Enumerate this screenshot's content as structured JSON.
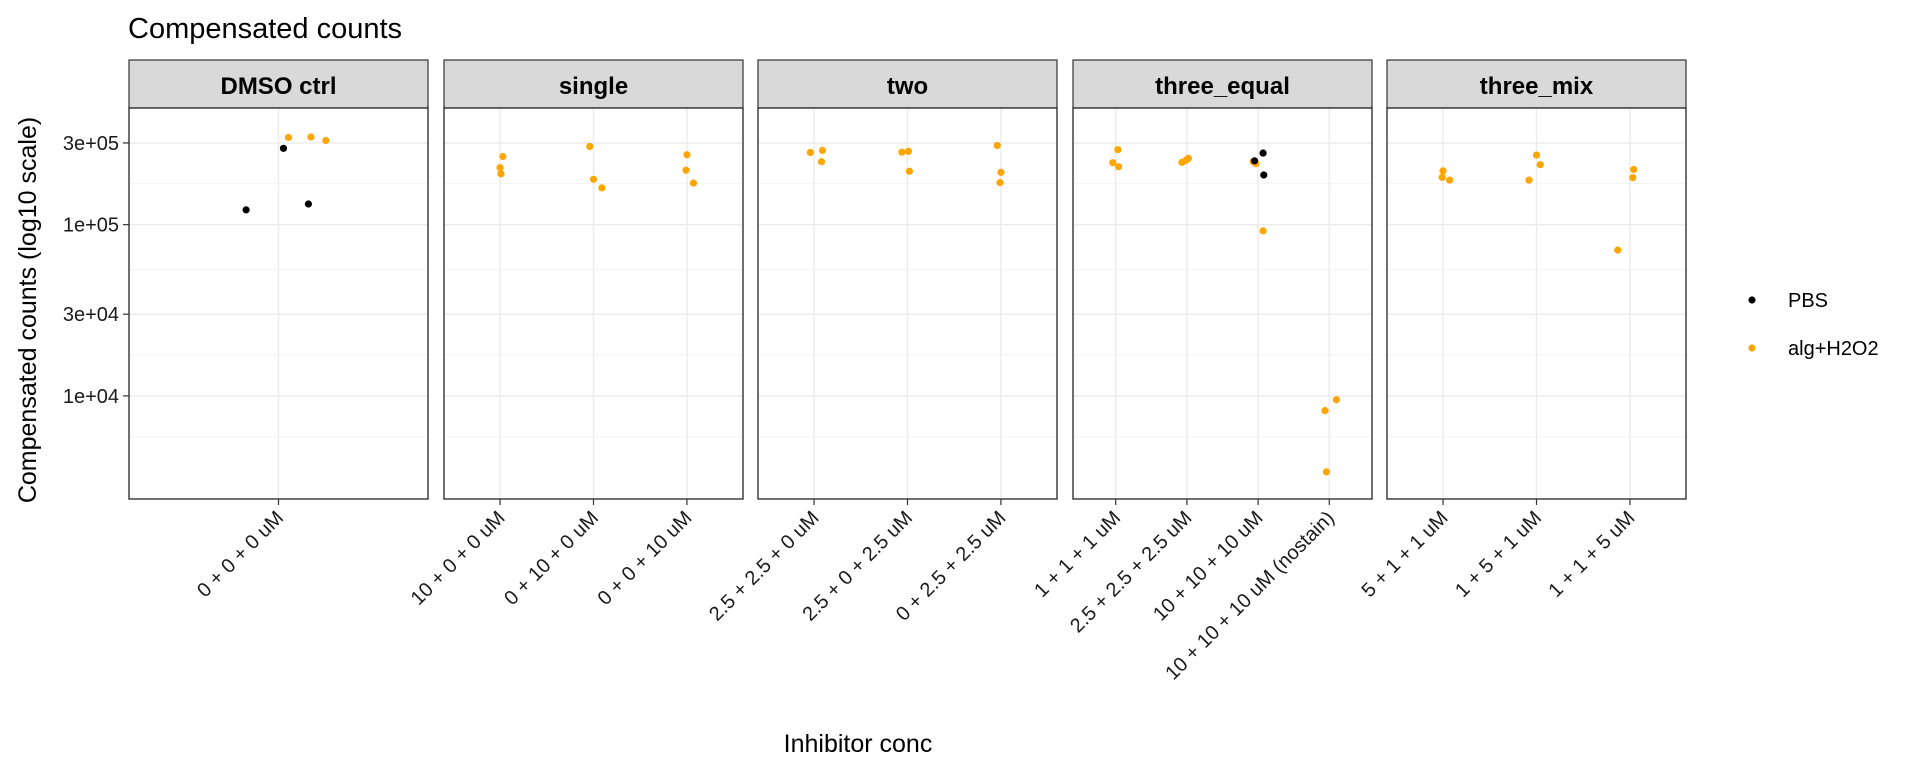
{
  "chart_data": {
    "type": "scatter",
    "title": "Compensated counts",
    "xlabel": "Inhibitor conc",
    "ylabel": "Compensated counts (log10 scale)",
    "y_scale": "log10",
    "y_ticks": [
      10000,
      30000,
      100000,
      300000
    ],
    "y_tick_labels": [
      "1e+04",
      "3e+04",
      "1e+05",
      "3e+05"
    ],
    "ylim": [
      2500,
      480000
    ],
    "grid": true,
    "legend_position": "right",
    "colors": {
      "PBS": "#000000",
      "alg+H2O2": "#FFA500"
    },
    "legend": [
      {
        "key": "PBS",
        "label": "PBS",
        "color": "#000000"
      },
      {
        "key": "alg+H2O2",
        "label": "alg+H2O2",
        "color": "#FFA500"
      }
    ],
    "facets": [
      {
        "label": "DMSO ctrl",
        "categories": [
          "0 + 0 + 0 uM"
        ],
        "points": [
          {
            "category": "0 + 0 + 0 uM",
            "series": "PBS",
            "value": 122000,
            "jitter": -0.13
          },
          {
            "category": "0 + 0 + 0 uM",
            "series": "PBS",
            "value": 279000,
            "jitter": 0.02
          },
          {
            "category": "0 + 0 + 0 uM",
            "series": "PBS",
            "value": 132000,
            "jitter": 0.12
          },
          {
            "category": "0 + 0 + 0 uM",
            "series": "alg+H2O2",
            "value": 323000,
            "jitter": 0.04
          },
          {
            "category": "0 + 0 + 0 uM",
            "series": "alg+H2O2",
            "value": 325000,
            "jitter": 0.13
          },
          {
            "category": "0 + 0 + 0 uM",
            "series": "alg+H2O2",
            "value": 310000,
            "jitter": 0.19
          }
        ]
      },
      {
        "label": "single",
        "categories": [
          "10 + 0 + 0 uM",
          "0 + 10 + 0 uM",
          "0 + 0 + 10 uM"
        ],
        "points": [
          {
            "category": "10 + 0 + 0 uM",
            "series": "alg+H2O2",
            "value": 250000,
            "jitter": 0.03
          },
          {
            "category": "10 + 0 + 0 uM",
            "series": "alg+H2O2",
            "value": 215000,
            "jitter": 0.0
          },
          {
            "category": "10 + 0 + 0 uM",
            "series": "alg+H2O2",
            "value": 198000,
            "jitter": 0.01
          },
          {
            "category": "0 + 10 + 0 uM",
            "series": "alg+H2O2",
            "value": 286000,
            "jitter": -0.04
          },
          {
            "category": "0 + 10 + 0 uM",
            "series": "alg+H2O2",
            "value": 184000,
            "jitter": 0.0
          },
          {
            "category": "0 + 10 + 0 uM",
            "series": "alg+H2O2",
            "value": 164000,
            "jitter": 0.09
          },
          {
            "category": "0 + 0 + 10 uM",
            "series": "alg+H2O2",
            "value": 256000,
            "jitter": 0.0
          },
          {
            "category": "0 + 0 + 10 uM",
            "series": "alg+H2O2",
            "value": 208000,
            "jitter": -0.01
          },
          {
            "category": "0 + 0 + 10 uM",
            "series": "alg+H2O2",
            "value": 175000,
            "jitter": 0.07
          }
        ]
      },
      {
        "label": "two",
        "categories": [
          "2.5 + 2.5 + 0 uM",
          "2.5 + 0 + 2.5 uM",
          "0 + 2.5 + 2.5 uM"
        ],
        "points": [
          {
            "category": "2.5 + 2.5 + 0 uM",
            "series": "alg+H2O2",
            "value": 264000,
            "jitter": -0.04
          },
          {
            "category": "2.5 + 2.5 + 0 uM",
            "series": "alg+H2O2",
            "value": 271000,
            "jitter": 0.09
          },
          {
            "category": "2.5 + 2.5 + 0 uM",
            "series": "alg+H2O2",
            "value": 233000,
            "jitter": 0.08
          },
          {
            "category": "2.5 + 0 + 2.5 uM",
            "series": "alg+H2O2",
            "value": 265000,
            "jitter": -0.06
          },
          {
            "category": "2.5 + 0 + 2.5 uM",
            "series": "alg+H2O2",
            "value": 268000,
            "jitter": 0.01
          },
          {
            "category": "2.5 + 0 + 2.5 uM",
            "series": "alg+H2O2",
            "value": 205000,
            "jitter": 0.02
          },
          {
            "category": "0 + 2.5 + 2.5 uM",
            "series": "alg+H2O2",
            "value": 290000,
            "jitter": -0.04
          },
          {
            "category": "0 + 2.5 + 2.5 uM",
            "series": "alg+H2O2",
            "value": 202000,
            "jitter": 0.0
          },
          {
            "category": "0 + 2.5 + 2.5 uM",
            "series": "alg+H2O2",
            "value": 176000,
            "jitter": -0.01
          }
        ]
      },
      {
        "label": "three_equal",
        "categories": [
          "1 + 1 + 1 uM",
          "2.5 + 2.5 + 2.5 uM",
          "10 + 10 + 10 uM",
          "10 + 10 + 10 uM (nostain)"
        ],
        "points": [
          {
            "category": "1 + 1 + 1 uM",
            "series": "alg+H2O2",
            "value": 274000,
            "jitter": 0.03
          },
          {
            "category": "1 + 1 + 1 uM",
            "series": "alg+H2O2",
            "value": 230000,
            "jitter": -0.04
          },
          {
            "category": "1 + 1 + 1 uM",
            "series": "alg+H2O2",
            "value": 218000,
            "jitter": 0.04
          },
          {
            "category": "2.5 + 2.5 + 2.5 uM",
            "series": "alg+H2O2",
            "value": 231000,
            "jitter": -0.07
          },
          {
            "category": "2.5 + 2.5 + 2.5 uM",
            "series": "alg+H2O2",
            "value": 238000,
            "jitter": -0.01
          },
          {
            "category": "2.5 + 2.5 + 2.5 uM",
            "series": "alg+H2O2",
            "value": 244000,
            "jitter": 0.02
          },
          {
            "category": "10 + 10 + 10 uM",
            "series": "alg+H2O2",
            "value": 233000,
            "jitter": -0.07
          },
          {
            "category": "10 + 10 + 10 uM",
            "series": "alg+H2O2",
            "value": 227000,
            "jitter": -0.03
          },
          {
            "category": "10 + 10 + 10 uM",
            "series": "PBS",
            "value": 236000,
            "jitter": -0.05
          },
          {
            "category": "10 + 10 + 10 uM",
            "series": "PBS",
            "value": 262000,
            "jitter": 0.07
          },
          {
            "category": "10 + 10 + 10 uM",
            "series": "PBS",
            "value": 195000,
            "jitter": 0.08
          },
          {
            "category": "10 + 10 + 10 uM",
            "series": "alg+H2O2",
            "value": 92000,
            "jitter": 0.07
          },
          {
            "category": "10 + 10 + 10 uM (nostain)",
            "series": "alg+H2O2",
            "value": 9500,
            "jitter": 0.1
          },
          {
            "category": "10 + 10 + 10 uM (nostain)",
            "series": "alg+H2O2",
            "value": 8200,
            "jitter": -0.06
          },
          {
            "category": "10 + 10 + 10 uM (nostain)",
            "series": "alg+H2O2",
            "value": 3600,
            "jitter": -0.04
          }
        ]
      },
      {
        "label": "three_mix",
        "categories": [
          "5 + 1 + 1 uM",
          "1 + 5 + 1 uM",
          "1 + 1 + 5 uM"
        ],
        "points": [
          {
            "category": "5 + 1 + 1 uM",
            "series": "alg+H2O2",
            "value": 206000,
            "jitter": 0.0
          },
          {
            "category": "5 + 1 + 1 uM",
            "series": "alg+H2O2",
            "value": 189000,
            "jitter": -0.01
          },
          {
            "category": "5 + 1 + 1 uM",
            "series": "alg+H2O2",
            "value": 182000,
            "jitter": 0.07
          },
          {
            "category": "1 + 5 + 1 uM",
            "series": "alg+H2O2",
            "value": 255000,
            "jitter": 0.0
          },
          {
            "category": "1 + 5 + 1 uM",
            "series": "alg+H2O2",
            "value": 224000,
            "jitter": 0.04
          },
          {
            "category": "1 + 5 + 1 uM",
            "series": "alg+H2O2",
            "value": 182000,
            "jitter": -0.08
          },
          {
            "category": "1 + 1 + 5 uM",
            "series": "alg+H2O2",
            "value": 210000,
            "jitter": 0.04
          },
          {
            "category": "1 + 1 + 5 uM",
            "series": "alg+H2O2",
            "value": 188000,
            "jitter": 0.03
          },
          {
            "category": "1 + 1 + 5 uM",
            "series": "alg+H2O2",
            "value": 71000,
            "jitter": -0.13
          }
        ]
      }
    ]
  }
}
